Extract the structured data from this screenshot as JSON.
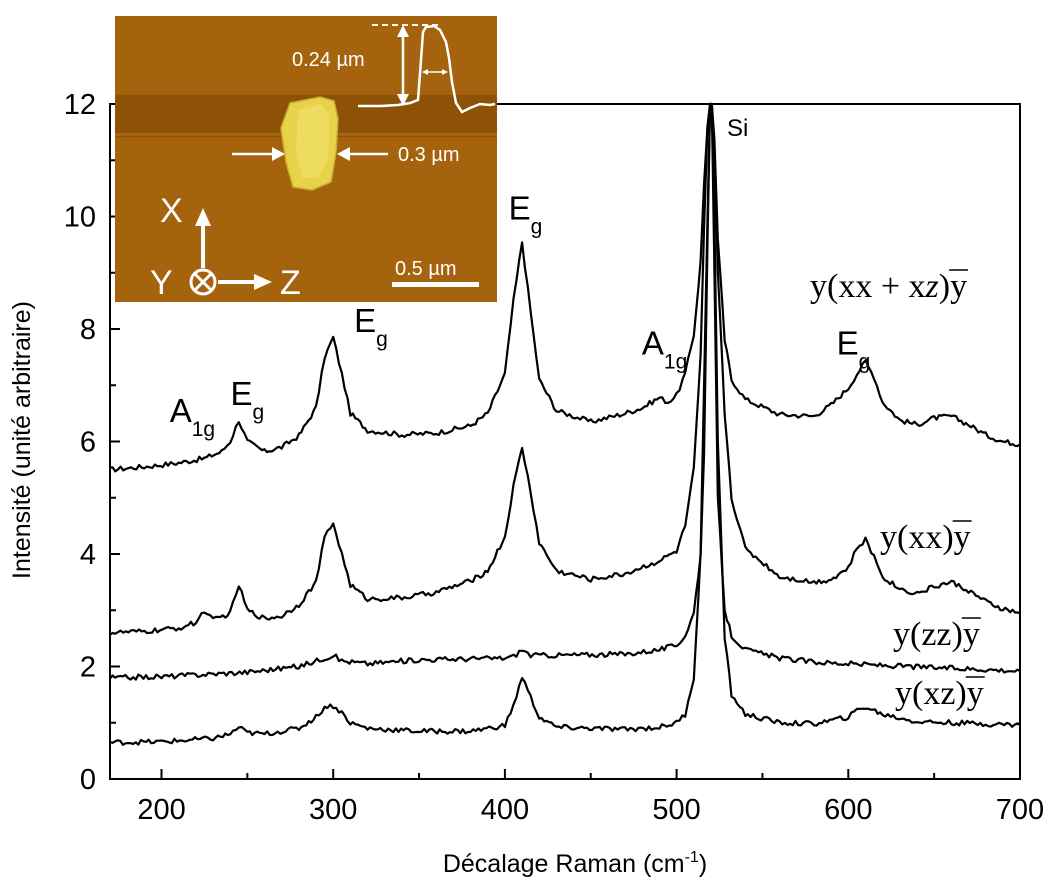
{
  "chart_data": {
    "type": "line",
    "xlabel": "Décalage Raman (cm",
    "xlabel_sup": "-1",
    "xlabel_end": ")",
    "ylabel": "Intensité (unité arbitraire)",
    "xlim": [
      170,
      700
    ],
    "ylim": [
      0,
      12
    ],
    "x_ticks": [
      200,
      300,
      400,
      500,
      600,
      700
    ],
    "y_ticks": [
      0,
      2,
      4,
      6,
      8,
      10,
      12
    ],
    "grid": false,
    "peak_labels": [
      {
        "main": "A",
        "sub": "1g",
        "x": 218,
        "y": 6.35
      },
      {
        "main": "E",
        "sub": "g",
        "x": 250,
        "y": 6.65
      },
      {
        "main": "E",
        "sub": "g",
        "x": 322,
        "y": 7.95
      },
      {
        "main": "E",
        "sub": "g",
        "x": 412,
        "y": 9.95
      },
      {
        "main": "A",
        "sub": "1g",
        "x": 493,
        "y": 7.55
      },
      {
        "main": "E",
        "sub": "g",
        "x": 603,
        "y": 7.55
      }
    ],
    "si_label": "Si",
    "series": [
      {
        "name": "y(xx + xz)y",
        "name_parts": [
          "y(xx + x",
          "z",
          ")",
          "y"
        ],
        "values": {
          "x": [
            170,
            190,
            210,
            225,
            235,
            240,
            245,
            250,
            260,
            270,
            280,
            290,
            295,
            300,
            305,
            310,
            320,
            340,
            360,
            380,
            390,
            400,
            405,
            410,
            415,
            420,
            430,
            450,
            470,
            480,
            490,
            495,
            500,
            505,
            510,
            514,
            516,
            518,
            519.5,
            520.5,
            522,
            524,
            528,
            532,
            540,
            560,
            580,
            590,
            600,
            605,
            610,
            615,
            620,
            630,
            640,
            650,
            660,
            670,
            680,
            690,
            700
          ],
          "y": [
            5.5,
            5.55,
            5.62,
            5.7,
            5.82,
            6.0,
            6.38,
            6.0,
            5.82,
            5.9,
            6.1,
            6.6,
            7.5,
            7.85,
            7.2,
            6.5,
            6.2,
            6.12,
            6.15,
            6.28,
            6.5,
            7.2,
            8.5,
            9.55,
            8.3,
            7.1,
            6.55,
            6.35,
            6.5,
            6.6,
            6.78,
            6.7,
            6.82,
            7.2,
            7.9,
            9.2,
            10.6,
            11.6,
            12.0,
            12.0,
            11.4,
            9.6,
            7.8,
            7.1,
            6.75,
            6.48,
            6.45,
            6.65,
            6.95,
            7.2,
            7.42,
            7.15,
            6.7,
            6.38,
            6.3,
            6.42,
            6.45,
            6.3,
            6.12,
            6.0,
            5.95
          ]
        }
      },
      {
        "name": "y(xx)y",
        "name_parts": [
          "y(xx)",
          "y"
        ],
        "values": {
          "x": [
            170,
            190,
            210,
            220,
            225,
            230,
            240,
            245,
            250,
            260,
            270,
            280,
            290,
            295,
            300,
            305,
            310,
            320,
            340,
            360,
            380,
            390,
            400,
            405,
            410,
            415,
            420,
            430,
            450,
            470,
            490,
            500,
            505,
            510,
            514,
            516,
            518,
            519.5,
            520.5,
            522,
            524,
            528,
            532,
            540,
            560,
            580,
            590,
            600,
            605,
            610,
            615,
            620,
            630,
            640,
            650,
            660,
            670,
            680,
            690,
            700
          ],
          "y": [
            2.6,
            2.62,
            2.68,
            2.78,
            3.0,
            2.82,
            2.95,
            3.45,
            3.0,
            2.85,
            2.9,
            3.1,
            3.5,
            4.3,
            4.55,
            4.0,
            3.45,
            3.2,
            3.22,
            3.32,
            3.52,
            3.7,
            4.3,
            5.2,
            5.9,
            5.1,
            4.2,
            3.7,
            3.55,
            3.65,
            3.88,
            4.05,
            4.5,
            5.5,
            7.5,
            9.8,
            11.6,
            12.0,
            12.0,
            11.2,
            9.0,
            6.5,
            5.0,
            4.1,
            3.6,
            3.5,
            3.55,
            3.75,
            4.1,
            4.25,
            3.95,
            3.6,
            3.38,
            3.3,
            3.42,
            3.5,
            3.35,
            3.15,
            3.02,
            2.95
          ]
        }
      },
      {
        "name": "y(zz)y",
        "name_parts": [
          "y(zz)",
          "y"
        ],
        "values": {
          "x": [
            170,
            200,
            250,
            280,
            295,
            300,
            305,
            320,
            350,
            400,
            405,
            410,
            415,
            430,
            470,
            490,
            500,
            505,
            510,
            514,
            516,
            518,
            519.5,
            520.5,
            522,
            524,
            528,
            532,
            540,
            560,
            580,
            600,
            620,
            650,
            680,
            700
          ],
          "y": [
            1.8,
            1.82,
            1.9,
            2.0,
            2.15,
            2.2,
            2.1,
            2.05,
            2.12,
            2.15,
            2.18,
            2.3,
            2.2,
            2.2,
            2.22,
            2.3,
            2.38,
            2.55,
            2.95,
            4.0,
            5.8,
            9.5,
            12.0,
            12.0,
            9.0,
            5.0,
            3.0,
            2.55,
            2.3,
            2.15,
            2.08,
            2.05,
            2.02,
            1.98,
            1.95,
            1.92
          ]
        }
      },
      {
        "name": "y(xz)y",
        "name_parts": [
          "y(xz)",
          "y"
        ],
        "values": {
          "x": [
            170,
            200,
            230,
            240,
            245,
            250,
            260,
            280,
            290,
            295,
            300,
            305,
            310,
            320,
            350,
            380,
            400,
            405,
            410,
            415,
            420,
            430,
            470,
            490,
            500,
            505,
            510,
            514,
            516,
            518,
            519.5,
            520.5,
            522,
            524,
            528,
            532,
            540,
            560,
            580,
            600,
            605,
            610,
            620,
            640,
            660,
            680,
            700
          ],
          "y": [
            0.65,
            0.66,
            0.72,
            0.8,
            0.92,
            0.82,
            0.8,
            0.9,
            1.1,
            1.28,
            1.3,
            1.18,
            1.0,
            0.9,
            0.85,
            0.85,
            0.95,
            1.3,
            1.82,
            1.45,
            1.1,
            0.92,
            0.88,
            0.92,
            1.0,
            1.15,
            1.8,
            4.0,
            7.0,
            10.0,
            12.0,
            12.0,
            10.0,
            6.0,
            2.5,
            1.5,
            1.15,
            1.0,
            0.98,
            1.1,
            1.22,
            1.28,
            1.15,
            1.02,
            1.0,
            0.98,
            0.96
          ]
        }
      }
    ],
    "inset": {
      "height_label": "0.24 µm",
      "width_label": "0.3 µm",
      "scale_label": "0.5 µm",
      "axis_x": "X",
      "axis_y": "Y",
      "axis_z": "Z"
    },
    "colors": {
      "line": "#000000",
      "inset_bg": "#a4630c",
      "inset_band": "#8e5207",
      "particle": "#e8d24a",
      "particle_edge": "#c8b030"
    }
  }
}
